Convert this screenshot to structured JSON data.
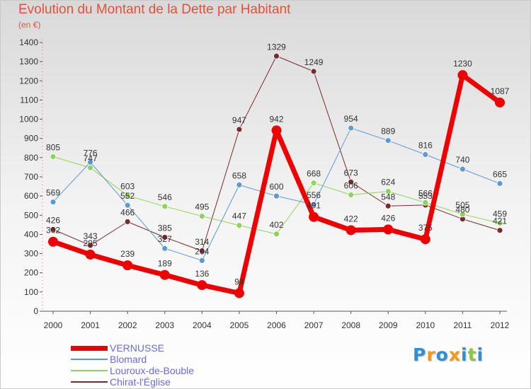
{
  "title": "Evolution du Montant de la Dette par Habitant",
  "subtitle": "(en €)",
  "logo": {
    "letters": [
      {
        "ch": "P",
        "color": "#2e8fd8"
      },
      {
        "ch": "r",
        "color": "#f29a1b"
      },
      {
        "ch": "o",
        "color": "#2e8fd8"
      },
      {
        "ch": "x",
        "color": "#f29a1b"
      },
      {
        "ch": "i",
        "color": "#2e8fd8"
      },
      {
        "ch": "t",
        "color": "#8dc63f"
      },
      {
        "ch": "i",
        "color": "#2e8fd8"
      }
    ]
  },
  "chart_data": {
    "type": "line",
    "categories": [
      "2000",
      "2001",
      "2002",
      "2003",
      "2004",
      "2005",
      "2006",
      "2007",
      "2008",
      "2009",
      "2010",
      "2011",
      "2012"
    ],
    "ylim": [
      0,
      1400
    ],
    "yticks": [
      0,
      100,
      200,
      300,
      400,
      500,
      600,
      700,
      800,
      900,
      1000,
      1100,
      1200,
      1300,
      1400
    ],
    "grid": false,
    "legend_position": "bottom-left",
    "series": [
      {
        "name": "Chirat-l'Église",
        "color": "#7a2b2b",
        "width": 1,
        "marker": 4,
        "values": [
          426,
          343,
          466,
          385,
          314,
          947,
          1329,
          1249,
          673,
          548,
          553,
          480,
          421
        ]
      },
      {
        "name": "Louroux-de-Bouble",
        "color": "#8fd45a",
        "width": 1,
        "marker": 4,
        "values": [
          805,
          747,
          603,
          546,
          495,
          447,
          402,
          668,
          606,
          624,
          566,
          505,
          459
        ]
      },
      {
        "name": "Blomard",
        "color": "#5b9bd5",
        "width": 1,
        "marker": 4,
        "values": [
          569,
          776,
          552,
          327,
          264,
          658,
          600,
          556,
          954,
          889,
          816,
          740,
          665
        ]
      },
      {
        "name": "VERNUSSE",
        "color": "#ee0000",
        "width": 7,
        "marker": 7,
        "values": [
          362,
          295,
          239,
          189,
          136,
          94,
          942,
          491,
          422,
          426,
          375,
          1230,
          1087
        ]
      }
    ],
    "value_labels": [
      {
        "text": "426",
        "series": 0,
        "index": 0,
        "pos": "above"
      },
      {
        "text": "343",
        "series": 0,
        "index": 1,
        "pos": "above"
      },
      {
        "text": "466",
        "series": 0,
        "index": 2,
        "pos": "above"
      },
      {
        "text": "385",
        "series": 0,
        "index": 3,
        "pos": "above"
      },
      {
        "text": "314",
        "series": 0,
        "index": 4,
        "pos": "above"
      },
      {
        "text": "947",
        "series": 0,
        "index": 5,
        "pos": "above"
      },
      {
        "text": "1329",
        "series": 0,
        "index": 6,
        "pos": "above"
      },
      {
        "text": "1249",
        "series": 0,
        "index": 7,
        "pos": "above"
      },
      {
        "text": "673",
        "series": 0,
        "index": 8,
        "pos": "above"
      },
      {
        "text": "548",
        "series": 0,
        "index": 9,
        "pos": "above"
      },
      {
        "text": "553",
        "series": 0,
        "index": 10,
        "pos": "above"
      },
      {
        "text": "480",
        "series": 0,
        "index": 11,
        "pos": "above"
      },
      {
        "text": "421",
        "series": 0,
        "index": 12,
        "pos": "above"
      },
      {
        "text": "805",
        "series": 1,
        "index": 0,
        "pos": "above"
      },
      {
        "text": "747",
        "series": 1,
        "index": 1,
        "pos": "above"
      },
      {
        "text": "603",
        "series": 1,
        "index": 2,
        "pos": "above"
      },
      {
        "text": "546",
        "series": 1,
        "index": 3,
        "pos": "above"
      },
      {
        "text": "495",
        "series": 1,
        "index": 4,
        "pos": "above"
      },
      {
        "text": "447",
        "series": 1,
        "index": 5,
        "pos": "above"
      },
      {
        "text": "402",
        "series": 1,
        "index": 6,
        "pos": "above"
      },
      {
        "text": "668",
        "series": 1,
        "index": 7,
        "pos": "above"
      },
      {
        "text": "606",
        "series": 1,
        "index": 8,
        "pos": "above"
      },
      {
        "text": "624",
        "series": 1,
        "index": 9,
        "pos": "above"
      },
      {
        "text": "566",
        "series": 1,
        "index": 10,
        "pos": "above"
      },
      {
        "text": "505",
        "series": 1,
        "index": 11,
        "pos": "above"
      },
      {
        "text": "459",
        "series": 1,
        "index": 12,
        "pos": "above"
      },
      {
        "text": "569",
        "series": 2,
        "index": 0,
        "pos": "above"
      },
      {
        "text": "776",
        "series": 2,
        "index": 1,
        "pos": "above"
      },
      {
        "text": "552",
        "series": 2,
        "index": 2,
        "pos": "above"
      },
      {
        "text": "327",
        "series": 2,
        "index": 3,
        "pos": "above"
      },
      {
        "text": "264",
        "series": 2,
        "index": 4,
        "pos": "above"
      },
      {
        "text": "658",
        "series": 2,
        "index": 5,
        "pos": "above"
      },
      {
        "text": "600",
        "series": 2,
        "index": 6,
        "pos": "above"
      },
      {
        "text": "556",
        "series": 2,
        "index": 7,
        "pos": "above"
      },
      {
        "text": "954",
        "series": 2,
        "index": 8,
        "pos": "above"
      },
      {
        "text": "889",
        "series": 2,
        "index": 9,
        "pos": "above"
      },
      {
        "text": "816",
        "series": 2,
        "index": 10,
        "pos": "above"
      },
      {
        "text": "740",
        "series": 2,
        "index": 11,
        "pos": "above"
      },
      {
        "text": "665",
        "series": 2,
        "index": 12,
        "pos": "above"
      },
      {
        "text": "362",
        "series": 3,
        "index": 0,
        "pos": "above"
      },
      {
        "text": "295",
        "series": 3,
        "index": 1,
        "pos": "above"
      },
      {
        "text": "239",
        "series": 3,
        "index": 2,
        "pos": "above"
      },
      {
        "text": "189",
        "series": 3,
        "index": 3,
        "pos": "above"
      },
      {
        "text": "136",
        "series": 3,
        "index": 4,
        "pos": "above"
      },
      {
        "text": "94",
        "series": 3,
        "index": 5,
        "pos": "above"
      },
      {
        "text": "942",
        "series": 3,
        "index": 6,
        "pos": "above"
      },
      {
        "text": "491",
        "series": 3,
        "index": 7,
        "pos": "above"
      },
      {
        "text": "422",
        "series": 3,
        "index": 8,
        "pos": "above"
      },
      {
        "text": "426",
        "series": 3,
        "index": 9,
        "pos": "above"
      },
      {
        "text": "375",
        "series": 3,
        "index": 10,
        "pos": "above"
      },
      {
        "text": "1230",
        "series": 3,
        "index": 11,
        "pos": "above"
      },
      {
        "text": "1087",
        "series": 3,
        "index": 12,
        "pos": "above"
      }
    ]
  },
  "legend": [
    {
      "label": "VERNUSSE",
      "color": "#ee0000",
      "thickness": 7
    },
    {
      "label": "Blomard",
      "color": "#5b9bd5",
      "thickness": 2
    },
    {
      "label": "Louroux-de-Bouble",
      "color": "#8fd45a",
      "thickness": 2
    },
    {
      "label": "Chirat-l'Église",
      "color": "#7a2b2b",
      "thickness": 2
    }
  ]
}
